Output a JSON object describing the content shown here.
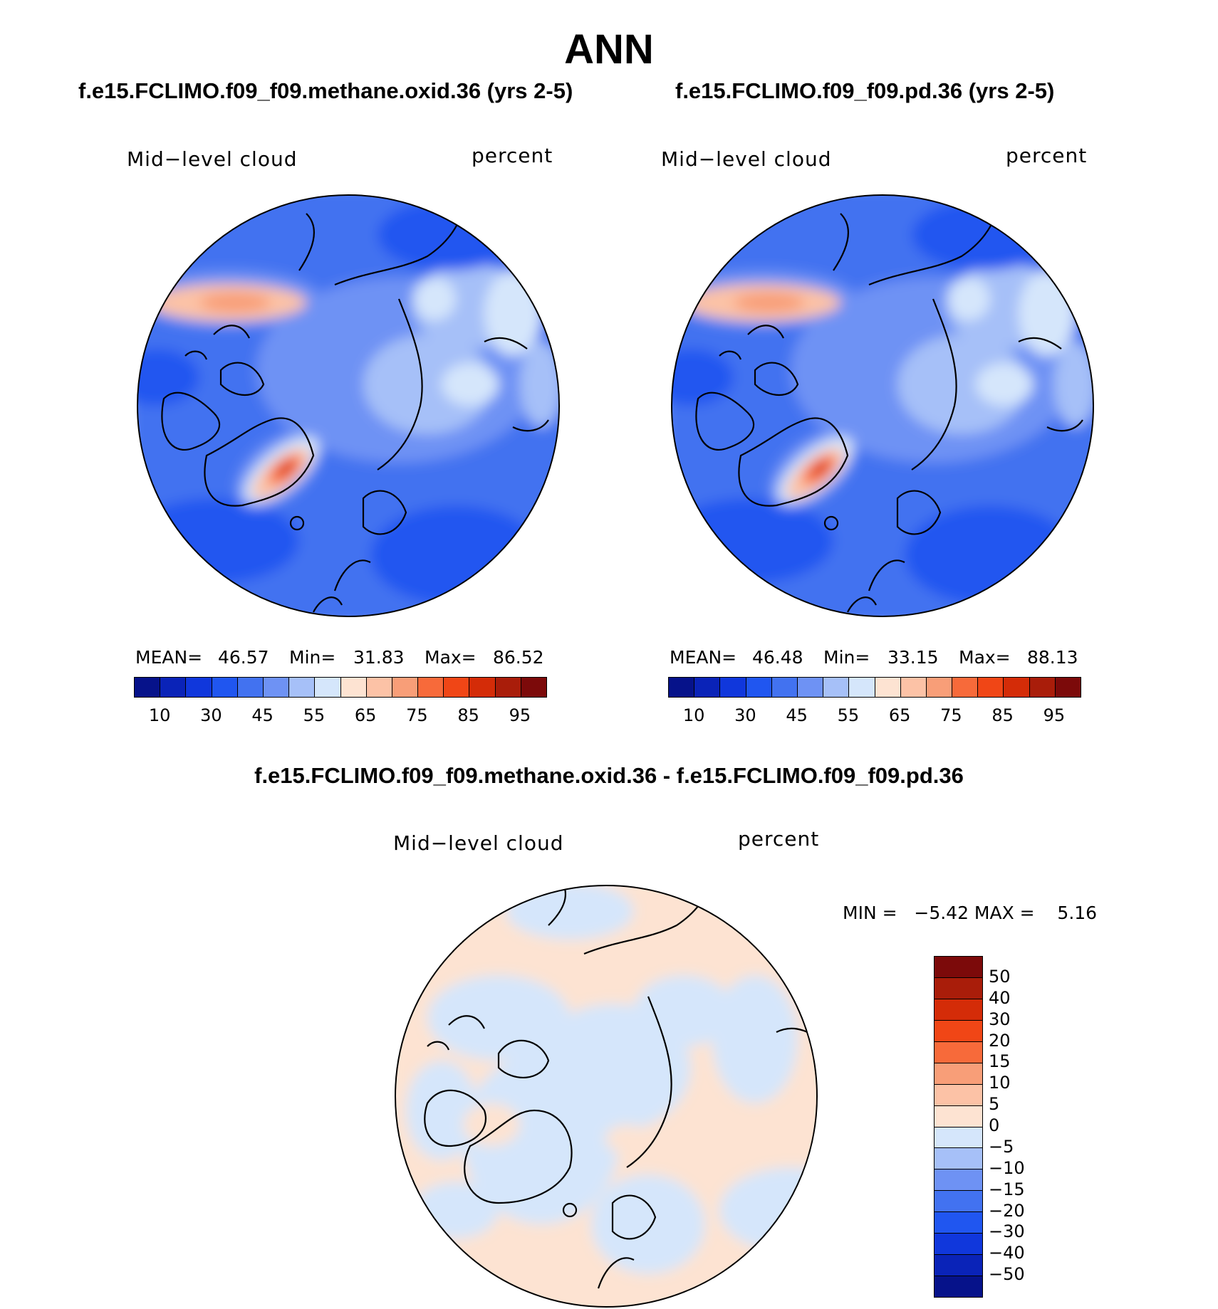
{
  "figure": {
    "title": "ANN",
    "panels": [
      {
        "case": "f.e15.FCLIMO.f09_f09.methane.oxid.36 (yrs 2-5)",
        "variable": "Mid−level cloud",
        "units": "percent",
        "stats": {
          "mean_label": "MEAN=",
          "mean": "46.57",
          "min_label": "Min=",
          "min": "31.83",
          "max_label": "Max=",
          "max": "86.52"
        },
        "ticks": [
          "10",
          "30",
          "45",
          "55",
          "65",
          "75",
          "85",
          "95"
        ]
      },
      {
        "case": "f.e15.FCLIMO.f09_f09.pd.36 (yrs 2-5)",
        "variable": "Mid−level cloud",
        "units": "percent",
        "stats": {
          "mean_label": "MEAN=",
          "mean": "46.48",
          "min_label": "Min=",
          "min": "33.15",
          "max_label": "Max=",
          "max": "88.13"
        },
        "ticks": [
          "10",
          "30",
          "45",
          "55",
          "65",
          "75",
          "85",
          "95"
        ]
      }
    ],
    "diff": {
      "title": "f.e15.FCLIMO.f09_f09.methane.oxid.36 - f.e15.FCLIMO.f09_f09.pd.36",
      "variable": "Mid−level cloud",
      "units": "percent",
      "minmax": "MIN =   −5.42 MAX =    5.16",
      "ticks": [
        "50",
        "40",
        "30",
        "20",
        "15",
        "10",
        "5",
        "0",
        "−5",
        "−10",
        "−15",
        "−20",
        "−30",
        "−40",
        "−50"
      ]
    },
    "colors": {
      "abs_scale": [
        "#06128a",
        "#0a23b8",
        "#1037dc",
        "#2056f0",
        "#4272f0",
        "#6e92f4",
        "#a6c0f8",
        "#d5e6fb",
        "#fde3d2",
        "#fcc2a6",
        "#f89e78",
        "#f76a3a",
        "#f04616",
        "#d42c08",
        "#a91d0a",
        "#7c0a0a"
      ],
      "diff_scale": [
        "#7c0a0a",
        "#a91d0a",
        "#d42c08",
        "#f04616",
        "#f76a3a",
        "#f89e78",
        "#fcc2a6",
        "#fde3d2",
        "#d5e6fb",
        "#a6c0f8",
        "#6e92f4",
        "#4272f0",
        "#2056f0",
        "#1037dc",
        "#0a23b8",
        "#06128a"
      ]
    }
  }
}
